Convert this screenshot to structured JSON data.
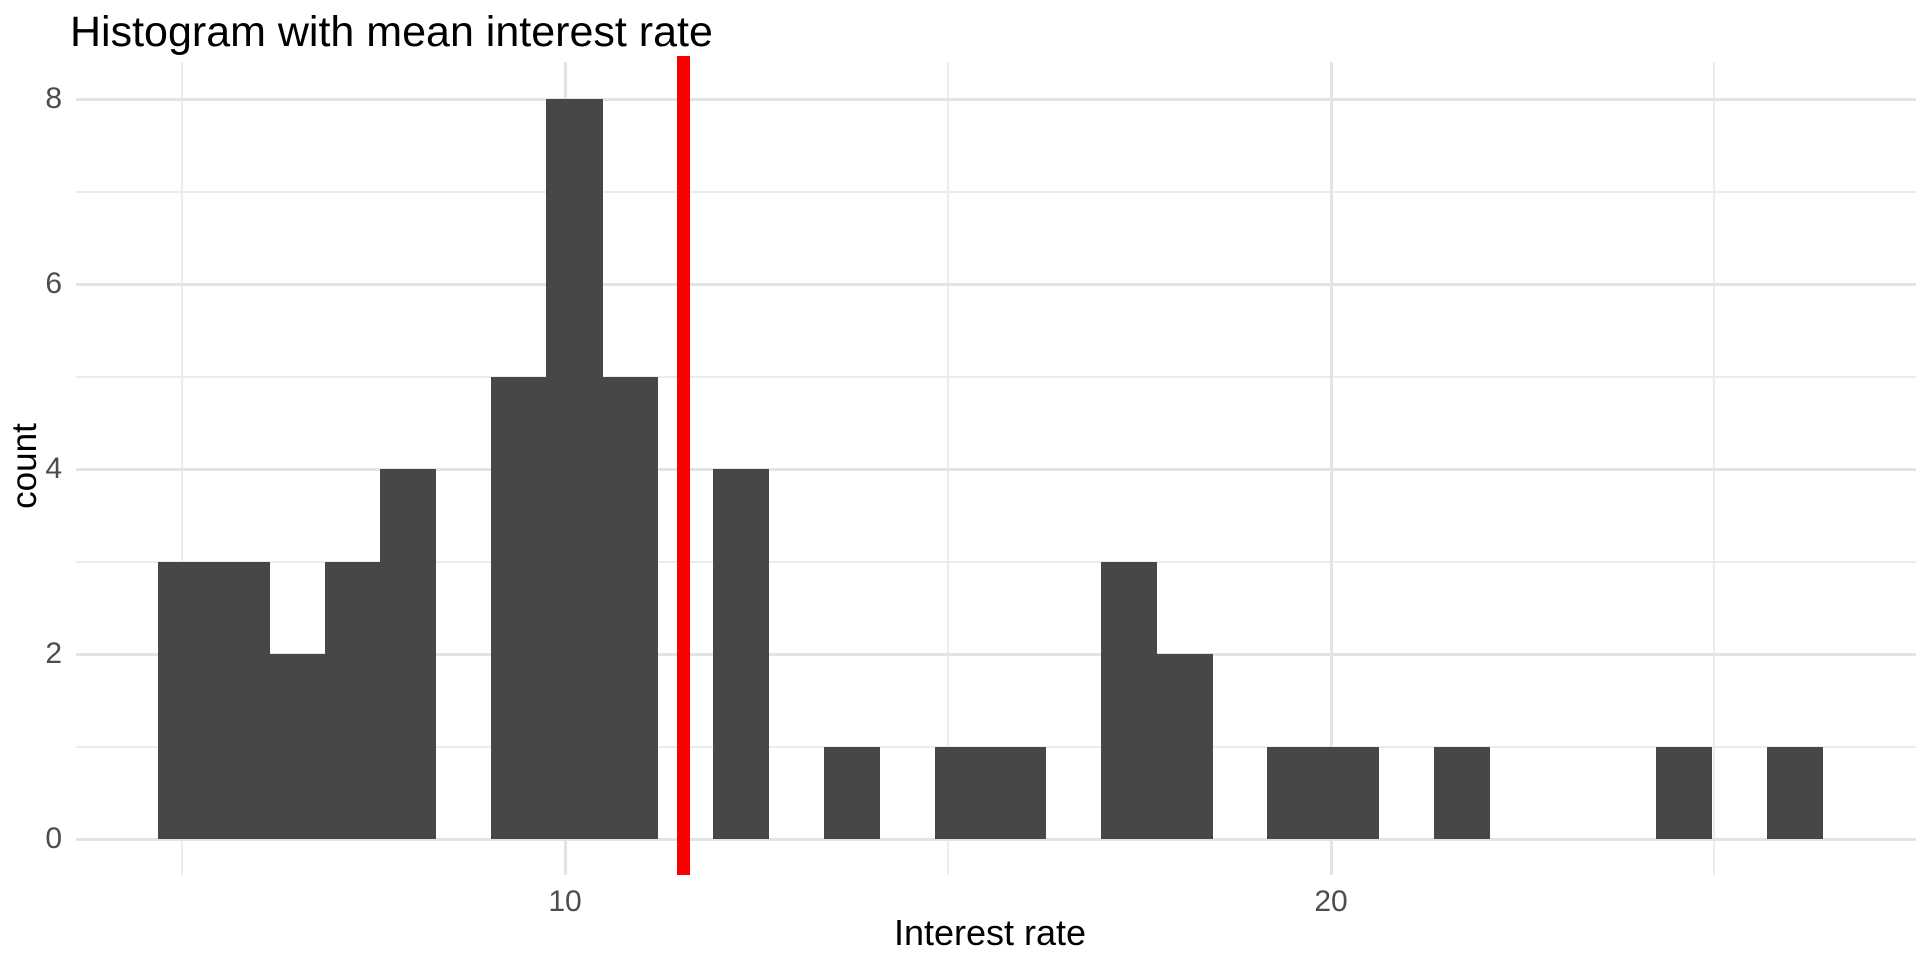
{
  "figure_title": "Histogram with mean interest rate",
  "x_axis": {
    "title": "Interest rate",
    "tick_labels": [
      "10",
      "20"
    ],
    "tick_values": [
      10,
      20
    ]
  },
  "y_axis": {
    "title": "count",
    "tick_labels": [
      "0",
      "2",
      "4",
      "6",
      "8"
    ],
    "tick_values": [
      0,
      2,
      4,
      6,
      8
    ]
  },
  "chart_data": {
    "type": "histogram",
    "title": "Histogram with mean interest rate",
    "xlabel": "Interest rate",
    "ylabel": "count",
    "bin_start": 4.69,
    "bin_width": 0.724,
    "counts": [
      3,
      3,
      2,
      3,
      4,
      0,
      5,
      8,
      5,
      0,
      4,
      0,
      1,
      0,
      1,
      1,
      0,
      3,
      2,
      0,
      1,
      1,
      0,
      1,
      0,
      0,
      0,
      1,
      0,
      1
    ],
    "mean_line_x": 11.55,
    "xlim": [
      3.6,
      27.6
    ],
    "ylim": [
      0,
      8.4
    ],
    "x_major_gridlines": [
      10,
      20
    ],
    "x_minor_gridlines": [
      5,
      15,
      25
    ],
    "y_major_gridlines": [
      0,
      2,
      4,
      6,
      8
    ],
    "y_minor_gridlines": [
      1,
      3,
      5,
      7
    ],
    "grid": true,
    "legend": false,
    "bar_color": "#474747",
    "mean_line_color": "#FB0000",
    "grid_major_color": "#E4E4E4",
    "grid_minor_color": "#ECECEC",
    "tick_label_color": "#4D4D4D",
    "text_color": "#000000",
    "background": "#FFFFFF"
  }
}
